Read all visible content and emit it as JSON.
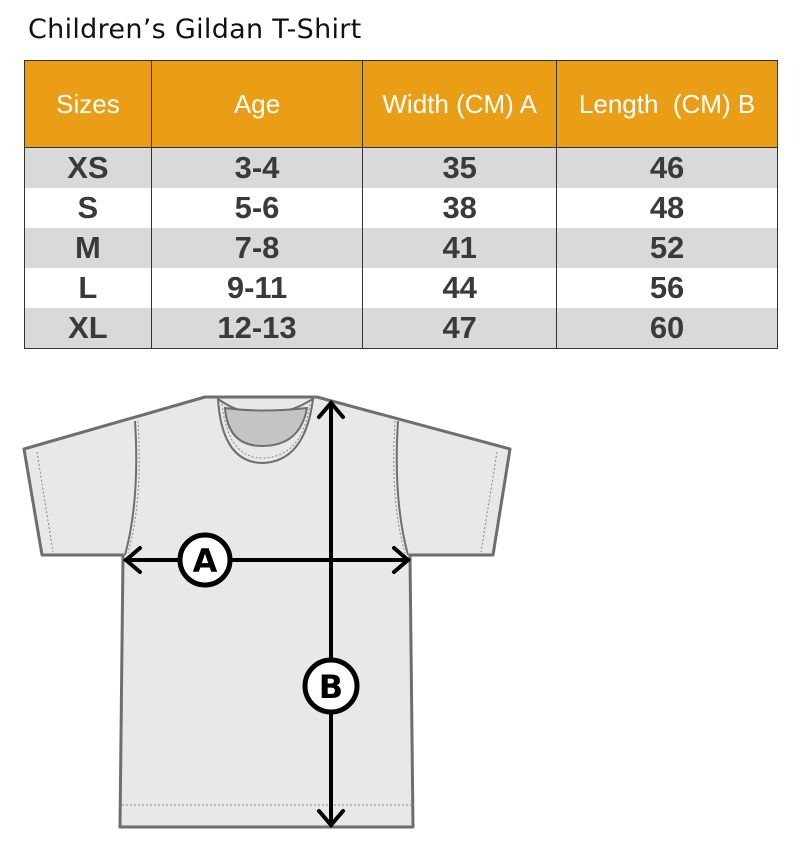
{
  "title": "Children’s Gildan T-Shirt",
  "table": {
    "headers": [
      "Sizes",
      "Age",
      "Width (CM) A",
      "Length  (CM) B"
    ],
    "rows": [
      [
        "XS",
        "3-4",
        "35",
        "46"
      ],
      [
        "S",
        "5-6",
        "38",
        "48"
      ],
      [
        "M",
        "7-8",
        "41",
        "52"
      ],
      [
        "L",
        "9-11",
        "44",
        "56"
      ],
      [
        "XL",
        "12-13",
        "47",
        "60"
      ]
    ],
    "header_color": "#ea9e16",
    "stripe_color": "#d9d9d9"
  },
  "diagram": {
    "width_label": "A",
    "length_label": "B"
  }
}
